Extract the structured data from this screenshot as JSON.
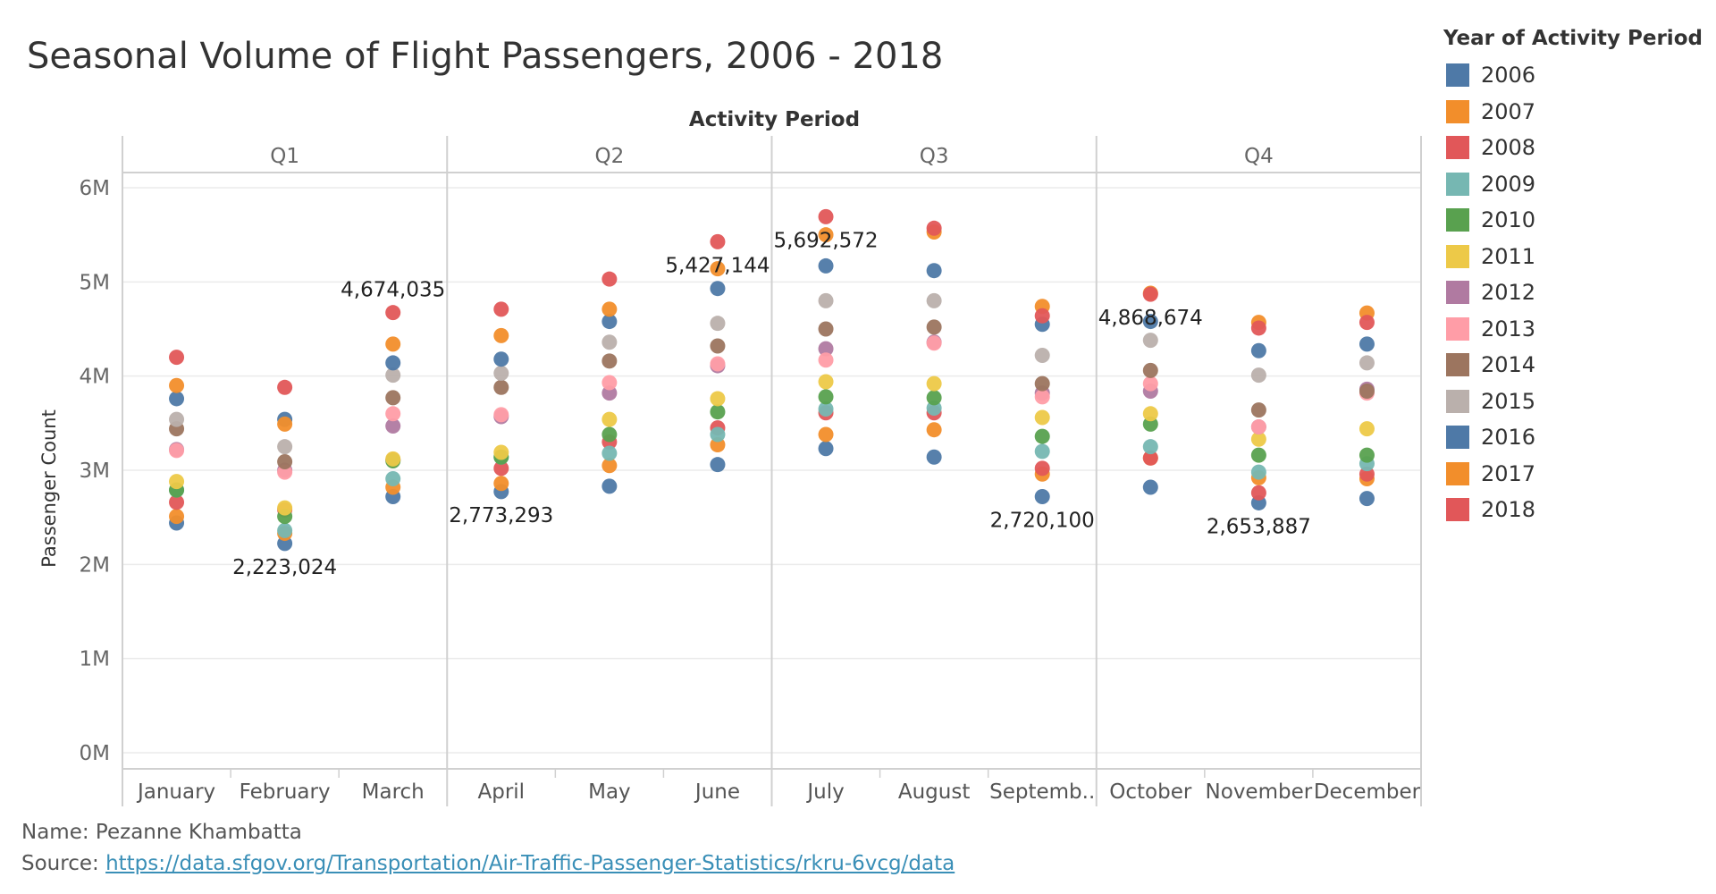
{
  "title": "Seasonal Volume of Flight Passengers, 2006 - 2018",
  "footer": {
    "name": "Name: Pezanne Khambatta",
    "source_label": "Source: ",
    "source_url": "https://data.sfgov.org/Transportation/Air-Traffic-Passenger-Statistics/rkru-6vcg/data"
  },
  "legend": {
    "title": "Year of Activity Period",
    "items": [
      {
        "label": "2006",
        "color": "#4e79a7"
      },
      {
        "label": "2007",
        "color": "#f28e2b"
      },
      {
        "label": "2008",
        "color": "#e15759"
      },
      {
        "label": "2009",
        "color": "#76b7b2"
      },
      {
        "label": "2010",
        "color": "#59a14f"
      },
      {
        "label": "2011",
        "color": "#edc948"
      },
      {
        "label": "2012",
        "color": "#b07aa1"
      },
      {
        "label": "2013",
        "color": "#ff9da7"
      },
      {
        "label": "2014",
        "color": "#9c755f"
      },
      {
        "label": "2015",
        "color": "#bab0ac"
      },
      {
        "label": "2016",
        "color": "#4e79a7"
      },
      {
        "label": "2017",
        "color": "#f28e2b"
      },
      {
        "label": "2018",
        "color": "#e15759"
      }
    ]
  },
  "chart_data": {
    "type": "scatter",
    "column_header": "Activity Period",
    "ylabel": "Passenger Count",
    "ylim": [
      0,
      6000000
    ],
    "y_ticks": [
      {
        "value": 0,
        "label": "0M"
      },
      {
        "value": 1000000,
        "label": "1M"
      },
      {
        "value": 2000000,
        "label": "2M"
      },
      {
        "value": 3000000,
        "label": "3M"
      },
      {
        "value": 4000000,
        "label": "4M"
      },
      {
        "value": 5000000,
        "label": "5M"
      },
      {
        "value": 6000000,
        "label": "6M"
      }
    ],
    "quarters": [
      "Q1",
      "Q2",
      "Q3",
      "Q4"
    ],
    "categories": [
      "January",
      "February",
      "March",
      "April",
      "May",
      "June",
      "July",
      "August",
      "Septemb..",
      "October",
      "November",
      "December"
    ],
    "grid": true,
    "legend_position": "right",
    "series": [
      {
        "name": "2006",
        "color": "#4e79a7",
        "values": [
          2440000,
          2223024,
          2720000,
          2773293,
          2830000,
          3060000,
          3230000,
          3140000,
          2720100,
          2820000,
          2653887,
          2700000
        ]
      },
      {
        "name": "2007",
        "color": "#f28e2b",
        "values": [
          2510000,
          2330000,
          2820000,
          2860000,
          3050000,
          3270000,
          3380000,
          3430000,
          2960000,
          3130000,
          2920000,
          2910000
        ]
      },
      {
        "name": "2008",
        "color": "#e15759",
        "values": [
          2660000,
          2580000,
          3110000,
          3020000,
          3300000,
          3450000,
          3610000,
          3610000,
          3020000,
          3130000,
          2760000,
          2960000
        ]
      },
      {
        "name": "2009",
        "color": "#76b7b2",
        "values": [
          2790000,
          2360000,
          2910000,
          3140000,
          3180000,
          3380000,
          3650000,
          3660000,
          3200000,
          3250000,
          2980000,
          3070000
        ]
      },
      {
        "name": "2010",
        "color": "#59a14f",
        "values": [
          2790000,
          2510000,
          3100000,
          3140000,
          3380000,
          3620000,
          3780000,
          3770000,
          3360000,
          3490000,
          3160000,
          3160000
        ]
      },
      {
        "name": "2011",
        "color": "#edc948",
        "values": [
          2880000,
          2600000,
          3120000,
          3190000,
          3540000,
          3760000,
          3940000,
          3920000,
          3560000,
          3600000,
          3330000,
          3440000
        ]
      },
      {
        "name": "2012",
        "color": "#b07aa1",
        "values": [
          3220000,
          3000000,
          3470000,
          3570000,
          3820000,
          4110000,
          4290000,
          4360000,
          3820000,
          3840000,
          3460000,
          3860000
        ]
      },
      {
        "name": "2013",
        "color": "#ff9da7",
        "values": [
          3210000,
          2980000,
          3600000,
          3590000,
          3930000,
          4130000,
          4170000,
          4350000,
          3780000,
          3920000,
          3460000,
          3820000
        ]
      },
      {
        "name": "2014",
        "color": "#9c755f",
        "values": [
          3440000,
          3090000,
          3770000,
          3880000,
          4160000,
          4320000,
          4500000,
          4520000,
          3920000,
          4060000,
          3640000,
          3840000
        ]
      },
      {
        "name": "2015",
        "color": "#bab0ac",
        "values": [
          3540000,
          3250000,
          4010000,
          4030000,
          4360000,
          4560000,
          4800000,
          4800000,
          4220000,
          4380000,
          4010000,
          4140000
        ]
      },
      {
        "name": "2016",
        "color": "#4e79a7",
        "values": [
          3760000,
          3540000,
          4140000,
          4180000,
          4580000,
          4930000,
          5170000,
          5120000,
          4550000,
          4580000,
          4270000,
          4340000
        ]
      },
      {
        "name": "2017",
        "color": "#f28e2b",
        "values": [
          3900000,
          3490000,
          4340000,
          4430000,
          4710000,
          5140000,
          5500000,
          5530000,
          4740000,
          4880000,
          4570000,
          4670000
        ]
      },
      {
        "name": "2018",
        "color": "#e15759",
        "values": [
          4200000,
          3880000,
          4674035,
          4710000,
          5030000,
          5427144,
          5692572,
          5570000,
          4640000,
          4868674,
          4510000,
          4570000
        ]
      }
    ],
    "annotations": [
      {
        "month": "February",
        "label": "2,223,024",
        "value": 2223024,
        "pos": "below"
      },
      {
        "month": "March",
        "label": "4,674,035",
        "value": 4674035,
        "pos": "above"
      },
      {
        "month": "April",
        "label": "2,773,293",
        "value": 2773293,
        "pos": "below"
      },
      {
        "month": "June",
        "label": "5,427,144",
        "value": 5427144,
        "pos": "below"
      },
      {
        "month": "July",
        "label": "5,692,572",
        "value": 5692572,
        "pos": "below"
      },
      {
        "month": "Septemb..",
        "label": "2,720,100",
        "value": 2720100,
        "pos": "below"
      },
      {
        "month": "October",
        "label": "4,868,674",
        "value": 4868674,
        "pos": "below"
      },
      {
        "month": "November",
        "label": "2,653,887",
        "value": 2653887,
        "pos": "below"
      }
    ]
  }
}
